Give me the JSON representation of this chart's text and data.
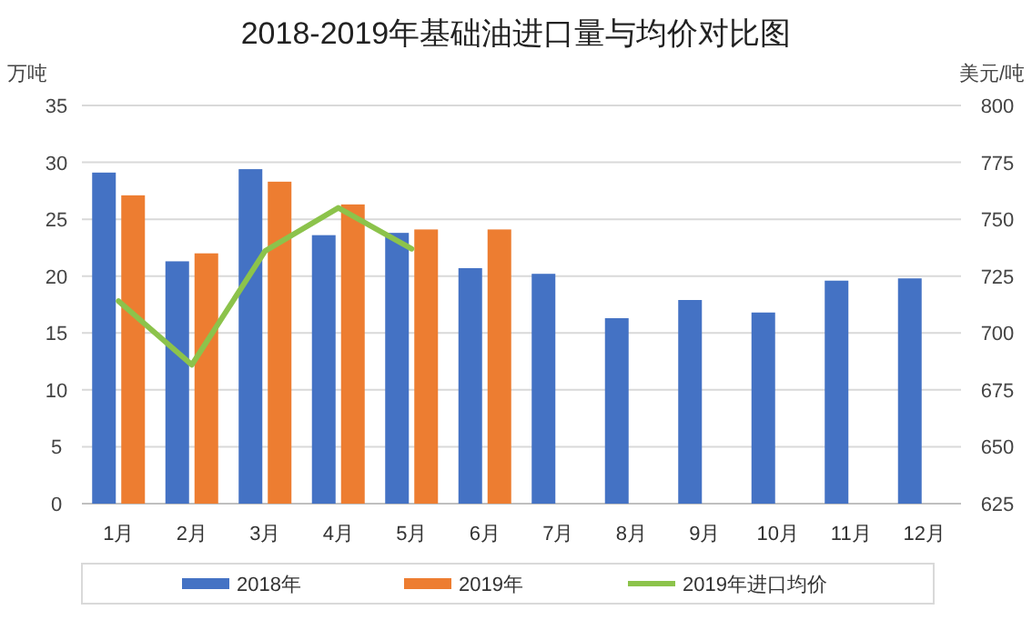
{
  "chart_data": {
    "type": "bar",
    "title": "2018-2019年基础油进口量与均价对比图",
    "ylabel": "万吨",
    "y2label": "美元/吨",
    "categories": [
      "1月",
      "2月",
      "3月",
      "4月",
      "5月",
      "6月",
      "7月",
      "8月",
      "9月",
      "10月",
      "11月",
      "12月"
    ],
    "series": [
      {
        "name": "2018年",
        "color": "#4472c4",
        "values": [
          29.1,
          21.3,
          29.4,
          23.6,
          23.8,
          20.7,
          20.2,
          16.3,
          17.9,
          16.8,
          19.6,
          19.8
        ]
      },
      {
        "name": "2019年",
        "color": "#ed7d31",
        "values": [
          27.1,
          22.0,
          28.3,
          26.3,
          24.1,
          24.1,
          null,
          null,
          null,
          null,
          null,
          null
        ]
      },
      {
        "name": "2019年进口均价",
        "type": "line",
        "axis": "y2",
        "color": "#8cc34b",
        "values": [
          714,
          686,
          736,
          755,
          737,
          null,
          null,
          null,
          null,
          null,
          null,
          null
        ]
      }
    ],
    "ylim": [
      0,
      35
    ],
    "yticks": [
      0,
      5,
      10,
      15,
      20,
      25,
      30,
      35
    ],
    "y2lim": [
      625,
      800
    ],
    "y2ticks": [
      625,
      650,
      675,
      700,
      725,
      750,
      775,
      800
    ],
    "grid": "y",
    "legend": "bottom"
  }
}
